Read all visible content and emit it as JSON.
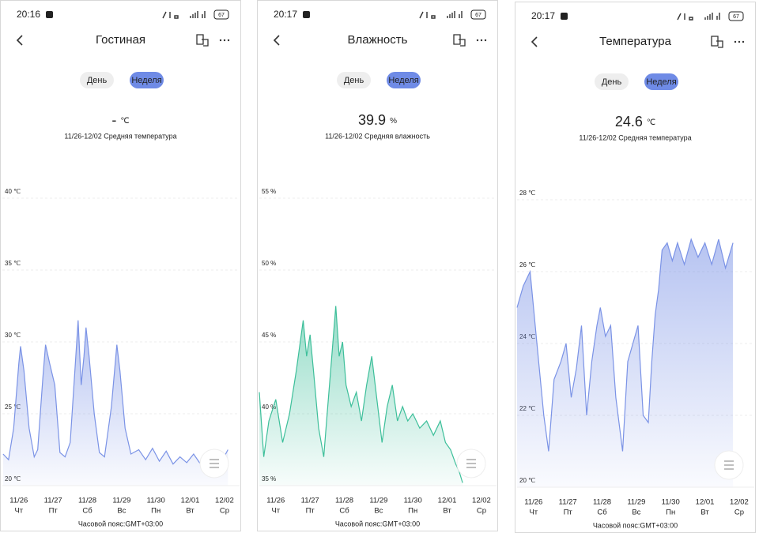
{
  "screens": [
    {
      "status_time": "20:16",
      "battery": "67",
      "title": "Гостиная",
      "tabs": [
        "День",
        "Неделя"
      ],
      "value": "-",
      "unit": "℃",
      "subtitle": "11/26-12/02 Средняя температура",
      "chart_data": {
        "type": "area",
        "color": "#7b93e6",
        "x": [
          -0.46,
          -0.3,
          -0.15,
          0,
          0.05,
          0.15,
          0.3,
          0.45,
          0.55,
          0.7,
          0.78,
          0.9,
          1.05,
          1.2,
          1.35,
          1.5,
          1.65,
          1.73,
          1.82,
          1.9,
          1.96,
          2.05,
          2.2,
          2.35,
          2.5,
          2.7,
          2.86,
          2.95,
          3.1,
          3.27,
          3.5,
          3.7,
          3.9,
          4.1,
          4.3,
          4.5,
          4.7,
          4.9,
          5.1,
          5.3,
          5.5,
          5.7,
          5.9,
          6.1
        ],
        "values": [
          22.2,
          21.8,
          24,
          28.5,
          29.7,
          28,
          24,
          22,
          22.5,
          27.5,
          29.8,
          28.5,
          27,
          22.3,
          22,
          23,
          28.5,
          31.5,
          27,
          29,
          31,
          29,
          25,
          22.3,
          22,
          25.5,
          29.8,
          28,
          24,
          22.2,
          22.5,
          21.8,
          22.6,
          21.7,
          22.4,
          21.5,
          22,
          21.6,
          22.2,
          21.5,
          21.9,
          22.3,
          21.6,
          22.5
        ],
        "xlim": [
          -0.48,
          6.44
        ],
        "ylim": [
          20,
          40
        ],
        "yticks": [
          {
            "value": 40,
            "label": "40 ℃"
          },
          {
            "value": 35,
            "label": "35 ℃"
          },
          {
            "value": 30,
            "label": "30 ℃"
          },
          {
            "value": 25,
            "label": "25 ℃"
          },
          {
            "value": 20,
            "label": "20 ℃"
          }
        ],
        "xticks": [
          {
            "value": 0,
            "label": "11/26"
          },
          {
            "value": 1,
            "label": "11/27"
          },
          {
            "value": 2,
            "label": "11/28"
          },
          {
            "value": 3,
            "label": "11/29"
          },
          {
            "value": 4,
            "label": "11/30"
          },
          {
            "value": 5,
            "label": "12/01"
          },
          {
            "value": 6,
            "label": "12/02"
          }
        ],
        "weekdays": [
          "Чт",
          "Пт",
          "Сб",
          "Вс",
          "Пн",
          "Вт",
          "Ср"
        ],
        "grid": true
      },
      "timezone": "Часовой пояс:GMT+03:00"
    },
    {
      "status_time": "20:17",
      "battery": "67",
      "title": "Влажность",
      "tabs": [
        "День",
        "Неделя"
      ],
      "value": 39.9,
      "unit": "%",
      "subtitle": "11/26-12/02 Средняя влажность",
      "chart_data": {
        "type": "area",
        "color": "#3dbf9a",
        "x": [
          -0.48,
          -0.35,
          -0.2,
          0,
          0.2,
          0.4,
          0.6,
          0.8,
          0.9,
          1.0,
          1.1,
          1.25,
          1.4,
          1.5,
          1.6,
          1.75,
          1.85,
          1.95,
          2.05,
          2.2,
          2.35,
          2.5,
          2.65,
          2.8,
          2.95,
          3.1,
          3.25,
          3.4,
          3.55,
          3.7,
          3.85,
          4.0,
          4.2,
          4.4,
          4.6,
          4.8,
          4.95,
          5.1,
          5.25,
          5.35,
          5.45
        ],
        "values": [
          41.5,
          37,
          39.5,
          41,
          38,
          40,
          43,
          46.5,
          44,
          45.5,
          43,
          39,
          37,
          40,
          43,
          47.5,
          44,
          45,
          42,
          40.5,
          41.5,
          39.5,
          42,
          44,
          41,
          38,
          40.5,
          42,
          39.5,
          40.5,
          39.5,
          40,
          39,
          39.5,
          38.5,
          39.5,
          38,
          37.5,
          36.5,
          36,
          35.2
        ],
        "xlim": [
          -0.48,
          6.44
        ],
        "ylim": [
          35,
          55
        ],
        "yticks": [
          {
            "value": 55,
            "label": "55 %"
          },
          {
            "value": 50,
            "label": "50 %"
          },
          {
            "value": 45,
            "label": "45 %"
          },
          {
            "value": 40,
            "label": "40 %"
          },
          {
            "value": 35,
            "label": "35 %"
          }
        ],
        "xticks": [
          {
            "value": 0,
            "label": "11/26"
          },
          {
            "value": 1,
            "label": "11/27"
          },
          {
            "value": 2,
            "label": "11/28"
          },
          {
            "value": 3,
            "label": "11/29"
          },
          {
            "value": 4,
            "label": "11/30"
          },
          {
            "value": 5,
            "label": "12/01"
          },
          {
            "value": 6,
            "label": "12/02"
          }
        ],
        "weekdays": [
          "Чт",
          "Пт",
          "Сб",
          "Вс",
          "Пн",
          "Вт",
          "Ср"
        ],
        "grid": true
      },
      "timezone": "Часовой пояс:GMT+03:00"
    },
    {
      "status_time": "20:17",
      "battery": "67",
      "title": "Температура",
      "tabs": [
        "День",
        "Неделя"
      ],
      "value": 24.6,
      "unit": "℃",
      "subtitle": "11/26-12/02 Средняя температура",
      "chart_data": {
        "type": "area",
        "color": "#7b93e6",
        "x": [
          -0.48,
          -0.3,
          -0.1,
          0.1,
          0.3,
          0.44,
          0.6,
          0.8,
          0.95,
          1.1,
          1.25,
          1.4,
          1.55,
          1.7,
          1.85,
          1.95,
          2.1,
          2.25,
          2.4,
          2.6,
          2.75,
          2.9,
          3.05,
          3.2,
          3.35,
          3.45,
          3.55,
          3.65,
          3.75,
          3.9,
          4.05,
          4.2,
          4.4,
          4.6,
          4.8,
          5.0,
          5.2,
          5.4,
          5.6,
          5.82
        ],
        "values": [
          25,
          25.6,
          26,
          24,
          22,
          21,
          23,
          23.5,
          24,
          22.5,
          23.3,
          24.5,
          22,
          23.5,
          24.5,
          25,
          24.2,
          24.5,
          22.5,
          21,
          23.5,
          24,
          24.5,
          22,
          21.8,
          23.5,
          24.8,
          25.5,
          26.6,
          26.8,
          26.3,
          26.8,
          26.2,
          26.9,
          26.4,
          26.8,
          26.2,
          26.9,
          26.1,
          26.8
        ],
        "xlim": [
          -0.48,
          6.44
        ],
        "ylim": [
          20,
          28
        ],
        "yticks": [
          {
            "value": 28,
            "label": "28 ℃"
          },
          {
            "value": 26,
            "label": "26 ℃"
          },
          {
            "value": 24,
            "label": "24 ℃"
          },
          {
            "value": 22,
            "label": "22 ℃"
          },
          {
            "value": 20,
            "label": "20 ℃"
          }
        ],
        "xticks": [
          {
            "value": 0,
            "label": "11/26"
          },
          {
            "value": 1,
            "label": "11/27"
          },
          {
            "value": 2,
            "label": "11/28"
          },
          {
            "value": 3,
            "label": "11/29"
          },
          {
            "value": 4,
            "label": "11/30"
          },
          {
            "value": 5,
            "label": "12/01"
          },
          {
            "value": 6,
            "label": "12/02"
          }
        ],
        "weekdays": [
          "Чт",
          "Пт",
          "Сб",
          "Вс",
          "Пн",
          "Вт",
          "Ср"
        ],
        "grid": true
      },
      "timezone": "Часовой пояс:GMT+03:00"
    }
  ]
}
